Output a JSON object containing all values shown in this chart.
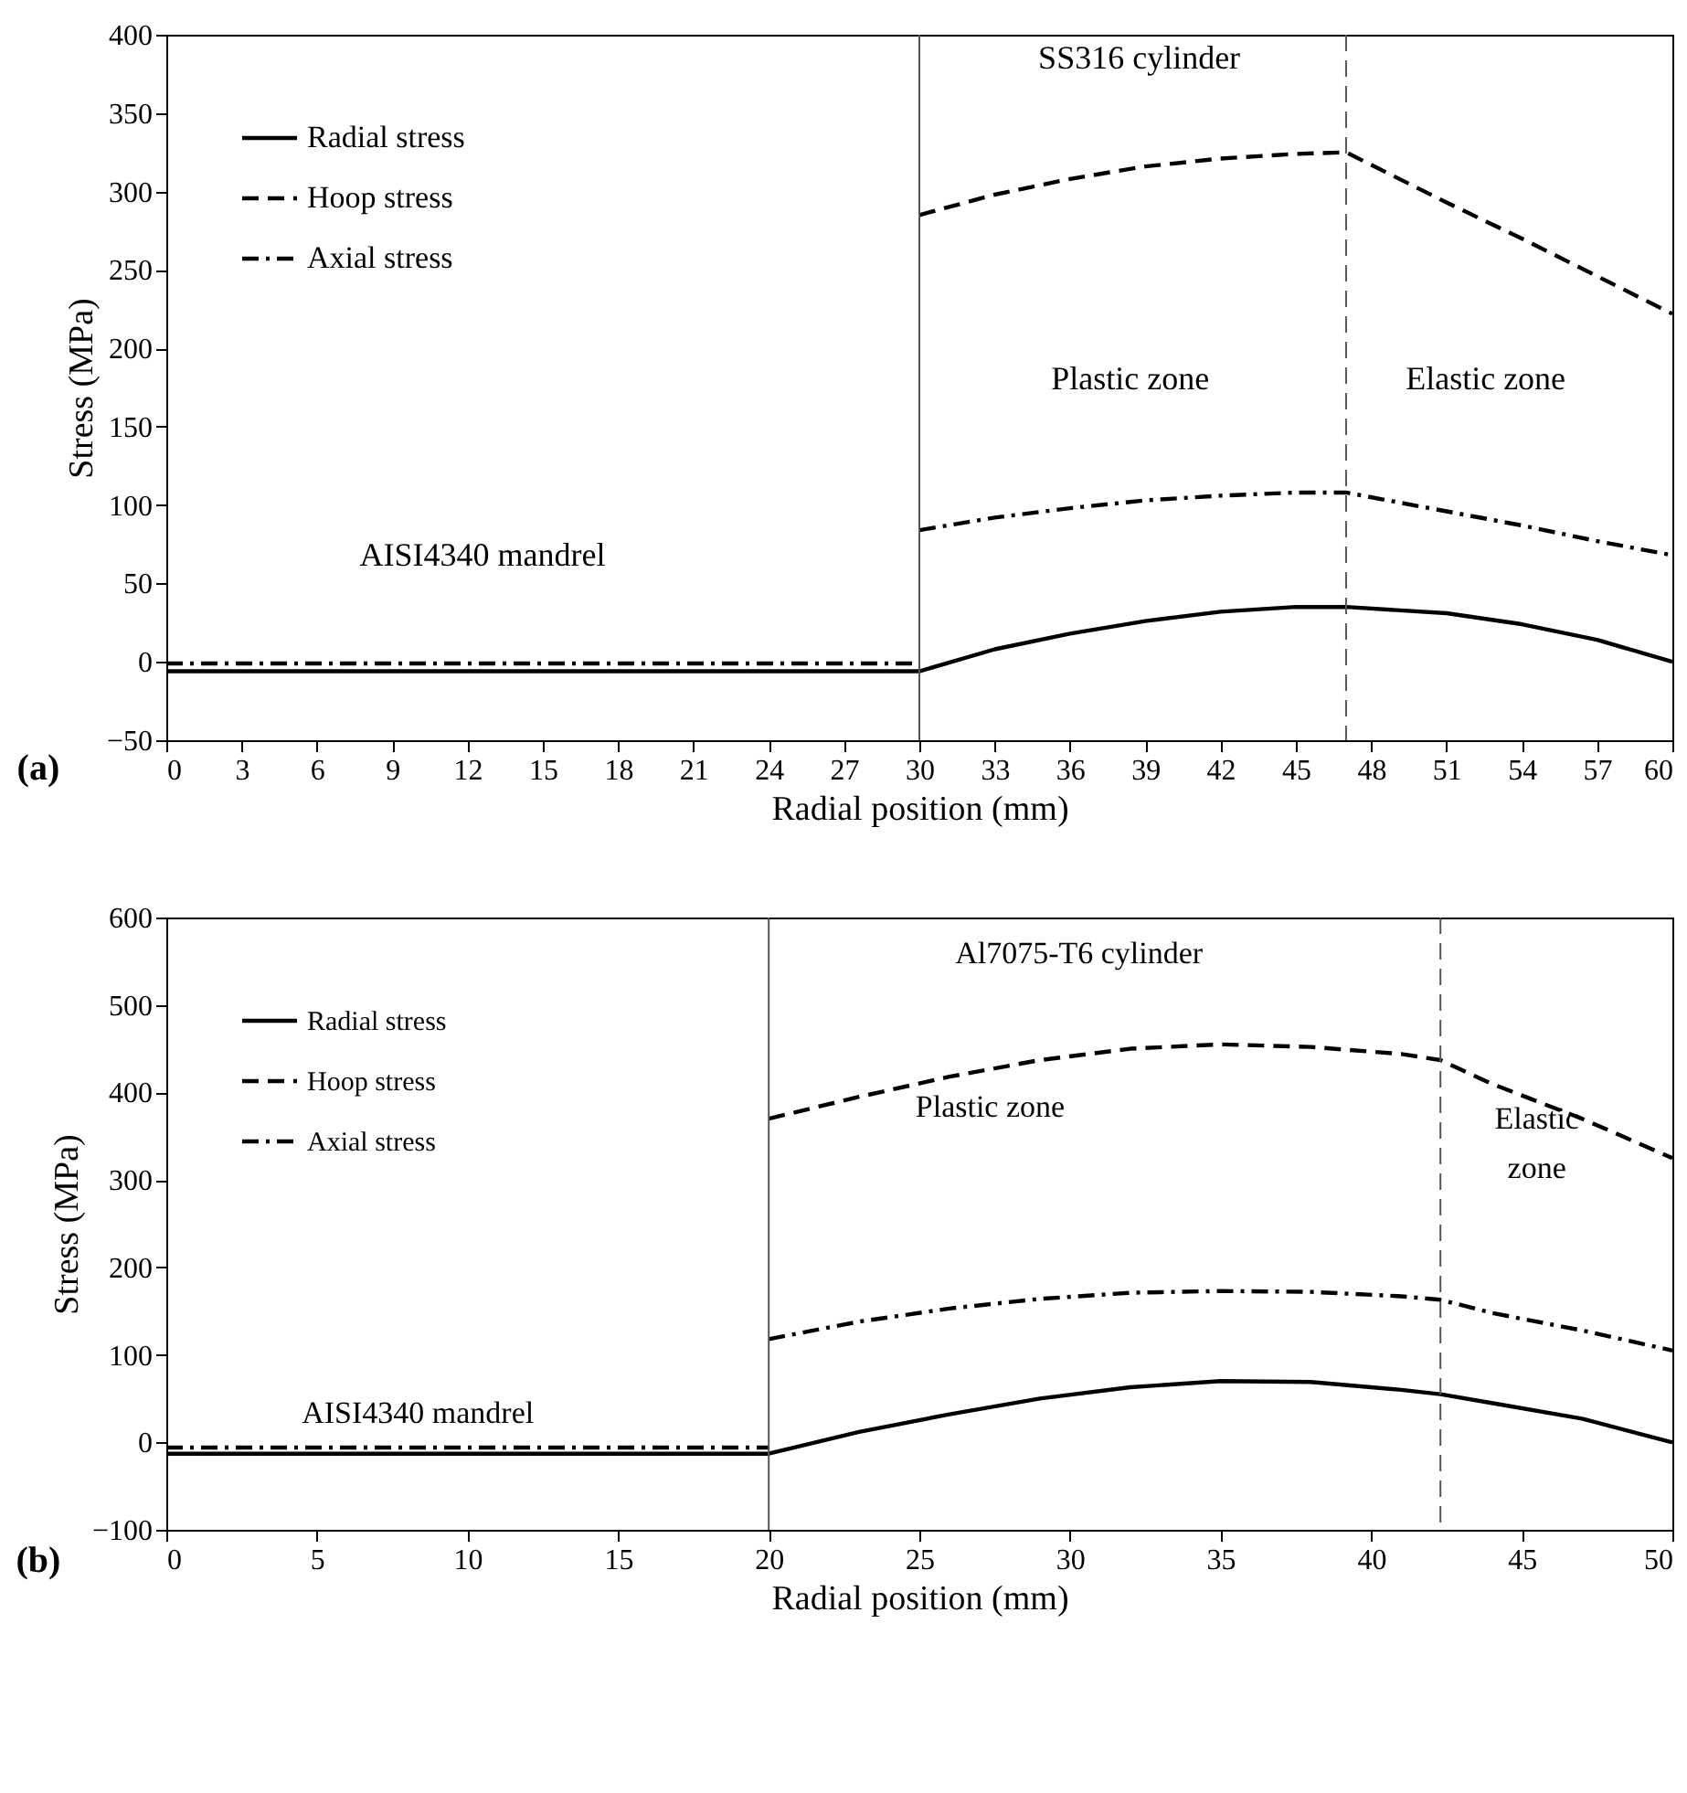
{
  "chart_data": [
    {
      "type": "line",
      "xlabel": "Radial position (mm)",
      "ylabel": "Stress (MPa)",
      "xlim": [
        0,
        60
      ],
      "xticks": [
        0,
        3,
        6,
        9,
        12,
        15,
        18,
        21,
        24,
        27,
        30,
        33,
        36,
        39,
        42,
        45,
        48,
        51,
        54,
        57,
        60
      ],
      "ylim": [
        -50,
        400
      ],
      "yticks": [
        -50,
        0,
        50,
        100,
        150,
        200,
        250,
        300,
        350,
        400
      ],
      "legend": "top left",
      "annotations": [
        "SS316 cylinder",
        "Plastic zone",
        "Elastic zone",
        "AISI4340 mandrel",
        "(a)"
      ],
      "ref_lines": [
        {
          "axis": "x",
          "value": 30,
          "color": "#555555",
          "line_style": "solid"
        },
        {
          "axis": "x",
          "value": 47,
          "color": "#555555",
          "line_style": "dashed"
        }
      ],
      "series": [
        {
          "name": "Radial stress",
          "color": "#000000",
          "line_style": "solid",
          "x": [
            0,
            30,
            33,
            36,
            39,
            42,
            45,
            47,
            51,
            54,
            57,
            60
          ],
          "values": [
            -6,
            -6,
            8,
            18,
            26,
            32,
            35,
            35,
            31,
            24,
            14,
            0
          ]
        },
        {
          "name": "Hoop stress",
          "color": "#000000",
          "line_style": "dashed",
          "x": [
            30,
            33,
            36,
            39,
            42,
            45,
            47,
            51,
            54,
            57,
            60
          ],
          "values": [
            285,
            298,
            308,
            316,
            321,
            324,
            325,
            293,
            270,
            246,
            222
          ]
        },
        {
          "name": "Axial stress",
          "color": "#000000",
          "line_style": "dashdot",
          "x": [
            30,
            33,
            36,
            39,
            42,
            45,
            47,
            51,
            54,
            57,
            60
          ],
          "values": [
            84,
            92,
            98,
            103,
            106,
            108,
            108,
            96,
            87,
            77,
            68
          ]
        },
        {
          "color": "#000000",
          "line_style": "dashdot",
          "x": [
            0,
            30
          ],
          "values": [
            -1,
            -1
          ]
        }
      ]
    },
    {
      "type": "line",
      "xlabel": "Radial position (mm)",
      "ylabel": "Stress (MPa)",
      "xlim": [
        0,
        50
      ],
      "xticks": [
        0,
        5,
        10,
        15,
        20,
        25,
        30,
        35,
        40,
        45,
        50
      ],
      "ylim": [
        -100,
        600
      ],
      "yticks": [
        -100,
        0,
        100,
        200,
        300,
        400,
        500,
        600
      ],
      "legend": "top left",
      "annotations": [
        "Al7075-T6 cylinder",
        "Plastic zone",
        "Elastic zone",
        "AISI4340 mandrel",
        "(b)"
      ],
      "ref_lines": [
        {
          "axis": "x",
          "value": 20,
          "color": "#555555",
          "line_style": "solid"
        },
        {
          "axis": "x",
          "value": 42.3,
          "color": "#555555",
          "line_style": "dashed"
        }
      ],
      "series": [
        {
          "name": "Radial stress",
          "color": "#000000",
          "line_style": "solid",
          "x": [
            0,
            20,
            23,
            26,
            29,
            32,
            35,
            38,
            41,
            42.3,
            44,
            47,
            50
          ],
          "values": [
            -13,
            -13,
            12,
            32,
            50,
            63,
            70,
            69,
            60,
            55,
            45,
            27,
            0
          ]
        },
        {
          "name": "Hoop stress",
          "color": "#000000",
          "line_style": "dashed",
          "x": [
            20,
            23,
            26,
            29,
            32,
            35,
            38,
            41,
            42.3,
            44,
            47,
            50
          ],
          "values": [
            370,
            395,
            418,
            437,
            450,
            455,
            452,
            444,
            437,
            410,
            370,
            325
          ]
        },
        {
          "name": "Axial stress",
          "color": "#000000",
          "line_style": "dashdot",
          "x": [
            20,
            23,
            26,
            29,
            32,
            35,
            38,
            41,
            42.3,
            44,
            47,
            50
          ],
          "values": [
            118,
            138,
            153,
            164,
            171,
            173,
            172,
            167,
            163,
            148,
            128,
            105
          ]
        },
        {
          "color": "#000000",
          "line_style": "dashdot",
          "x": [
            0,
            20
          ],
          "values": [
            -6,
            -6
          ]
        }
      ]
    }
  ]
}
